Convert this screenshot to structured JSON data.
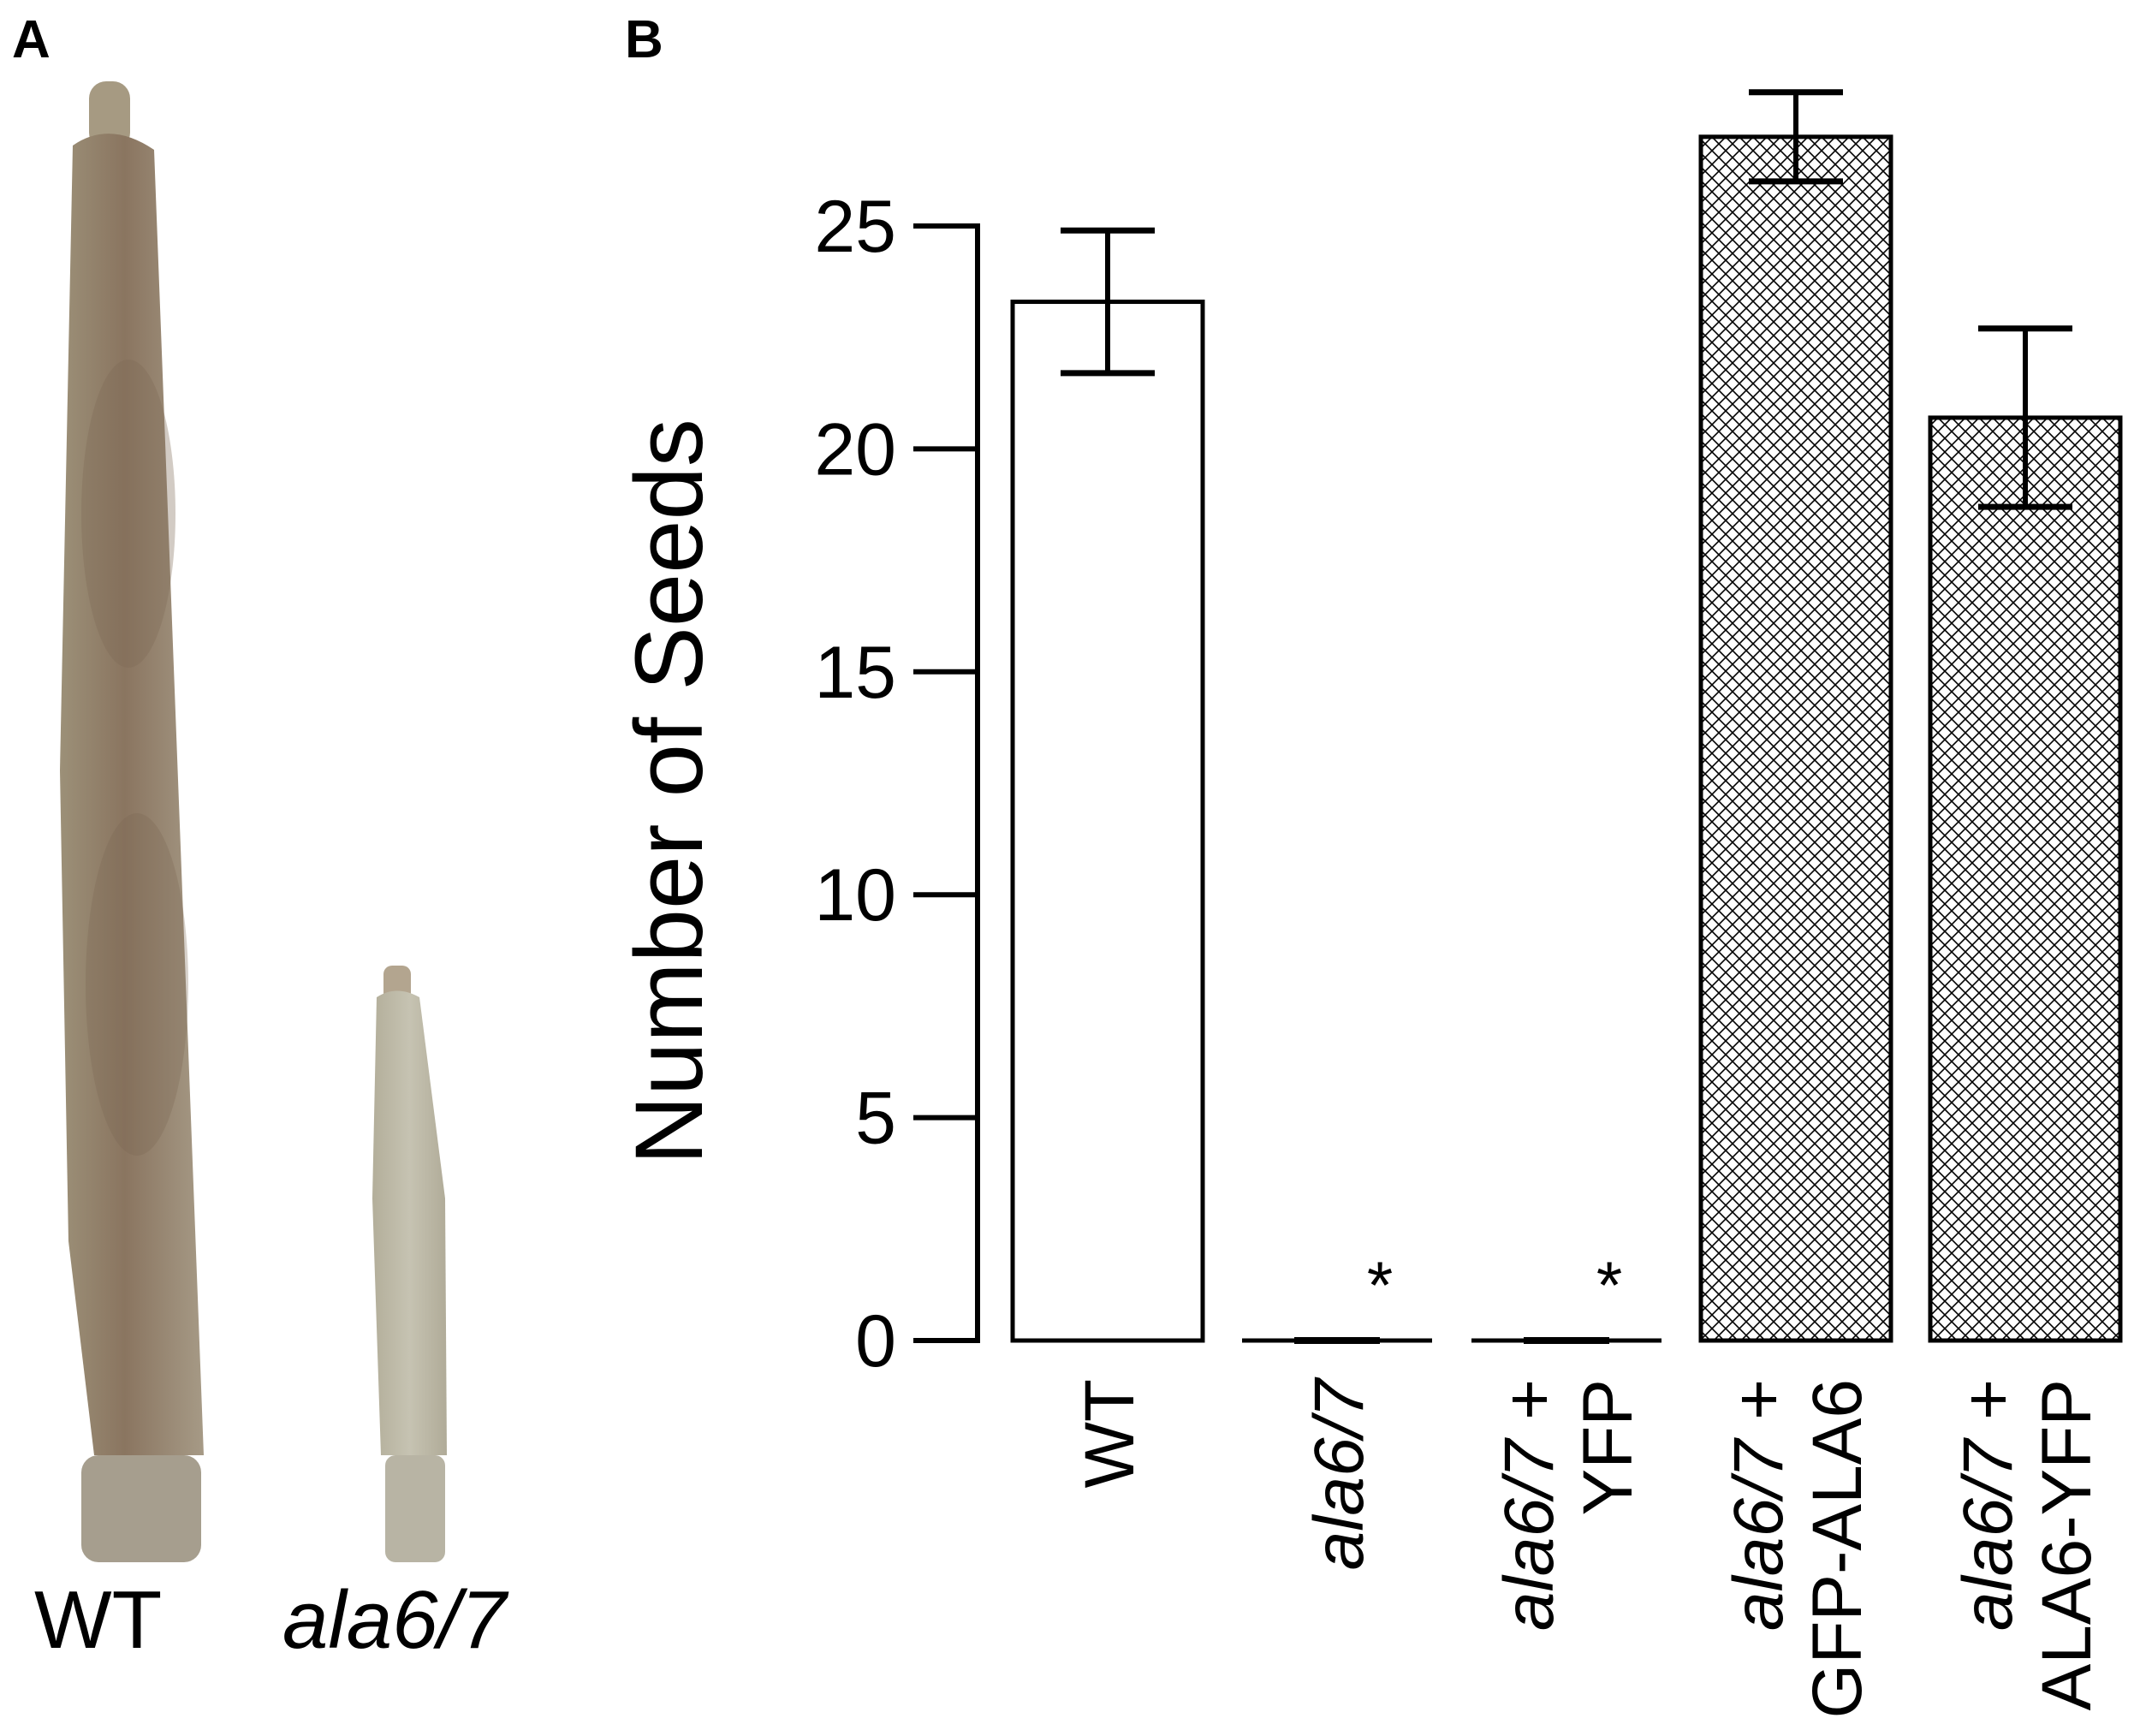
{
  "panel_a": {
    "letter": "A",
    "labels": [
      {
        "text": "WT",
        "italic": false
      },
      {
        "text": "ala6/7",
        "italic": true
      }
    ],
    "colors": {
      "wt_silique": "#8c7a66",
      "mutant_silique": "#bcb8a6"
    }
  },
  "panel_b": {
    "letter": "B"
  },
  "chart_data": {
    "type": "bar",
    "title": "",
    "ylabel": "Number of Seeds",
    "xlabel": "",
    "ylim": [
      0,
      25
    ],
    "yticks": [
      0,
      5,
      10,
      15,
      20,
      25
    ],
    "grid": false,
    "categories": [
      {
        "lines": [
          {
            "parts": [
              {
                "text": "WT",
                "italic": false
              }
            ]
          }
        ]
      },
      {
        "lines": [
          {
            "parts": [
              {
                "text": "ala6/7",
                "italic": true
              }
            ]
          }
        ]
      },
      {
        "lines": [
          {
            "parts": [
              {
                "text": "ala6/7",
                "italic": true
              },
              {
                "text": " +",
                "italic": false
              }
            ]
          },
          {
            "parts": [
              {
                "text": "YFP",
                "italic": false
              }
            ]
          }
        ]
      },
      {
        "lines": [
          {
            "parts": [
              {
                "text": "ala6/7",
                "italic": true
              },
              {
                "text": " +",
                "italic": false
              }
            ]
          },
          {
            "parts": [
              {
                "text": "GFP-ALA6",
                "italic": false
              }
            ]
          }
        ]
      },
      {
        "lines": [
          {
            "parts": [
              {
                "text": "ala6/7",
                "italic": true
              },
              {
                "text": " +",
                "italic": false
              }
            ]
          },
          {
            "parts": [
              {
                "text": "ALA6-YFP",
                "italic": false
              }
            ]
          }
        ]
      }
    ],
    "values": [
      23.3,
      0,
      0,
      27.0,
      20.7
    ],
    "errors": [
      1.6,
      0,
      0,
      1.0,
      2.0
    ],
    "fill": [
      "white",
      "white",
      "white",
      "crosshatch",
      "crosshatch"
    ],
    "annotations": [
      "",
      "*",
      "*",
      "",
      ""
    ]
  }
}
